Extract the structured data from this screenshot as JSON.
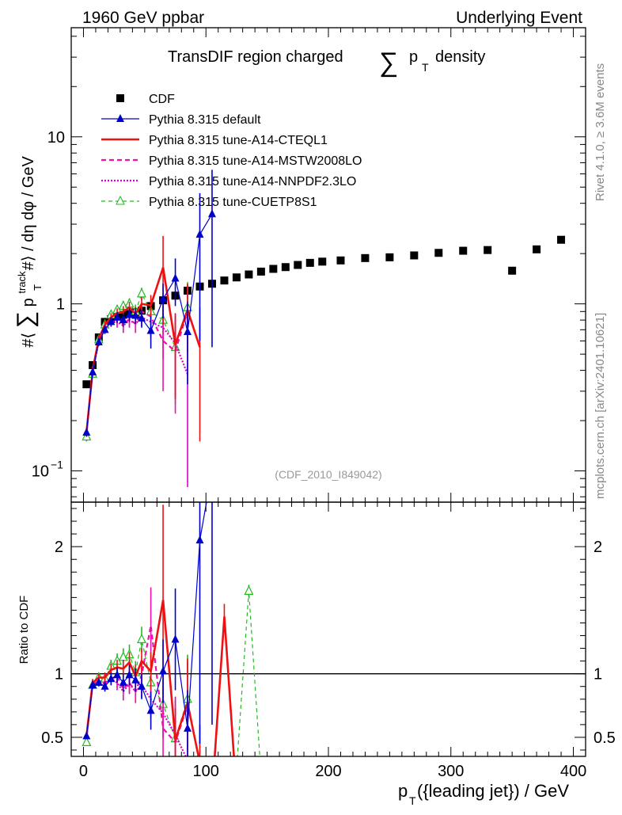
{
  "header": {
    "left": "1960 GeV ppbar",
    "right": "Underlying Event"
  },
  "side": {
    "rivet": "Rivet 4.1.0, ≥ 3.6M events",
    "mcplots": "mcplots.cern.ch [arXiv:2401.10621]"
  },
  "chart_data": {
    "type": "scatter",
    "title_prefix": "TransDIF region charged",
    "title_sum": "∑",
    "title_p": "p",
    "title_sub": "T",
    "title_suffix": "density",
    "watermark": "(CDF_2010_I849042)",
    "ylabel_main": "#⟨ ∑ pᵀ track #⟩ / dη dφ / GeV",
    "ylabel_main_parts": {
      "a": "#⟨",
      "sum": "∑",
      "p": "p",
      "sup": "track",
      "sub": "T",
      "b": "#⟩ / dη dφ / GeV"
    },
    "ylabel_ratio": "Ratio to CDF",
    "xlabel_main": "p",
    "xlabel_sub": "T",
    "xlabel_rest": "({leading jet}) / GeV",
    "xlim": [
      -10,
      410
    ],
    "ylim_main": [
      0.065,
      45
    ],
    "ylim_ratio": [
      0.35,
      2.35
    ],
    "main_yticks": [
      {
        "v": 0.1,
        "base": "10",
        "exp": "−1"
      },
      {
        "v": 1,
        "label": "1"
      },
      {
        "v": 10,
        "label": "10"
      }
    ],
    "xticks": [
      0,
      100,
      200,
      300,
      400
    ],
    "xtick_labels": [
      "0",
      "100",
      "200",
      "300",
      "400"
    ],
    "ratio_yticks": [
      0.5,
      1,
      2
    ],
    "ratio_ytick_labels": [
      "0.5",
      "1",
      "2"
    ],
    "legend": [
      "CDF",
      "Pythia 8.315 default",
      "Pythia 8.315 tune-A14-CTEQL1",
      "Pythia 8.315 tune-A14-MSTW2008LO",
      "Pythia 8.315 tune-A14-NNPDF2.3LO",
      "Pythia 8.315 tune-CUETP8S1"
    ],
    "data": {
      "name": "CDF",
      "x": [
        2.5,
        7.5,
        12.5,
        17.5,
        22.5,
        27.5,
        32.5,
        37.5,
        42.5,
        47.5,
        55,
        65,
        75,
        85,
        95,
        105,
        115,
        125,
        135,
        145,
        155,
        165,
        175,
        185,
        195,
        210,
        230,
        250,
        270,
        290,
        310,
        330,
        350,
        370,
        390
      ],
      "y": [
        0.33,
        0.43,
        0.63,
        0.78,
        0.81,
        0.84,
        0.86,
        0.87,
        0.89,
        0.91,
        0.97,
        1.05,
        1.12,
        1.2,
        1.27,
        1.32,
        1.38,
        1.44,
        1.5,
        1.56,
        1.62,
        1.66,
        1.71,
        1.76,
        1.79,
        1.82,
        1.88,
        1.9,
        1.95,
        2.02,
        2.08,
        2.1,
        1.58,
        2.12,
        2.42
      ]
    },
    "series": [
      {
        "name": "Pythia 8.315 default",
        "color": "#0000cc",
        "x": [
          2.5,
          7.5,
          12.5,
          17.5,
          22.5,
          27.5,
          32.5,
          37.5,
          42.5,
          47.5,
          55,
          65,
          75,
          85,
          95,
          105
        ],
        "y": [
          0.17,
          0.39,
          0.59,
          0.7,
          0.78,
          0.83,
          0.8,
          0.86,
          0.85,
          0.82,
          0.69,
          1.07,
          1.42,
          0.68,
          2.6,
          3.45
        ],
        "err": [
          0.01,
          0.02,
          0.03,
          0.04,
          0.05,
          0.06,
          0.07,
          0.08,
          0.09,
          0.1,
          0.15,
          0.25,
          0.45,
          0.35,
          2.0,
          2.9
        ],
        "ratio_x": [
          2.5,
          7.5,
          12.5,
          17.5,
          22.5,
          27.5,
          32.5,
          37.5,
          42.5,
          47.5,
          55,
          65,
          75,
          85,
          95,
          105
        ],
        "ratio_y": [
          0.51,
          0.91,
          0.93,
          0.9,
          0.96,
          0.99,
          0.93,
          0.99,
          0.95,
          0.9,
          0.71,
          1.02,
          1.27,
          0.57,
          2.05,
          2.6
        ],
        "ratio_err": [
          0.02,
          0.03,
          0.03,
          0.04,
          0.05,
          0.06,
          0.07,
          0.08,
          0.09,
          0.1,
          0.15,
          0.25,
          0.4,
          0.3,
          1.6,
          2.0
        ]
      },
      {
        "name": "Pythia 8.315 tune-A14-CTEQL1",
        "color": "#ee1111",
        "x": [
          2.5,
          7.5,
          12.5,
          17.5,
          22.5,
          27.5,
          32.5,
          37.5,
          42.5,
          47.5,
          55,
          65,
          75,
          85,
          95
        ],
        "y": [
          0.17,
          0.4,
          0.62,
          0.75,
          0.83,
          0.88,
          0.9,
          0.95,
          0.87,
          1.0,
          0.98,
          1.65,
          0.57,
          0.92,
          0.55
        ],
        "err": [
          0.01,
          0.02,
          0.03,
          0.04,
          0.05,
          0.06,
          0.07,
          0.08,
          0.09,
          0.1,
          0.15,
          0.9,
          0.3,
          0.4,
          0.4
        ],
        "ratio_x": [
          2.5,
          7.5,
          12.5,
          17.5,
          22.5,
          27.5,
          32.5,
          37.5,
          42.5,
          47.5,
          55,
          65,
          75,
          85,
          95,
          105,
          115,
          125
        ],
        "ratio_y": [
          0.51,
          0.93,
          0.97,
          0.97,
          1.03,
          1.05,
          1.04,
          1.09,
          0.98,
          1.1,
          1.02,
          1.58,
          0.48,
          0.77,
          0.3,
          0.05,
          1.45,
          0.05
        ],
        "ratio_err": [
          0.02,
          0.03,
          0.03,
          0.04,
          0.05,
          0.06,
          0.07,
          0.08,
          0.09,
          0.1,
          0.15,
          0.75,
          0.25,
          0.35,
          0.3,
          0,
          0.1,
          0
        ]
      },
      {
        "name": "Pythia 8.315 tune-A14-MSTW2008LO",
        "color": "#ee11aa",
        "x": [
          2.5,
          7.5,
          12.5,
          17.5,
          22.5,
          27.5,
          32.5,
          37.5,
          42.5,
          47.5,
          55,
          65,
          75,
          85
        ],
        "y": [
          0.17,
          0.4,
          0.6,
          0.73,
          0.78,
          0.82,
          0.76,
          0.81,
          0.76,
          0.9,
          0.84,
          0.6,
          0.52,
          0.9
        ],
        "err": [
          0.01,
          0.02,
          0.03,
          0.04,
          0.05,
          0.06,
          0.07,
          0.08,
          0.09,
          0.1,
          0.15,
          0.3,
          0.3,
          0.4
        ],
        "ratio_x": [
          2.5,
          7.5,
          12.5,
          17.5,
          22.5,
          27.5,
          32.5,
          37.5,
          42.5,
          47.5,
          55,
          65,
          75,
          85
        ],
        "ratio_y": [
          0.51,
          0.92,
          0.94,
          0.93,
          0.96,
          0.98,
          0.88,
          0.93,
          0.86,
          0.99,
          1.38,
          0.57,
          0.46,
          0.75
        ],
        "ratio_err": [
          0.02,
          0.03,
          0.03,
          0.04,
          0.05,
          0.06,
          0.07,
          0.08,
          0.09,
          0.1,
          0.3,
          0.25,
          0.3,
          0.35
        ]
      },
      {
        "name": "Pythia 8.315 tune-A14-NNPDF2.3LO",
        "color": "#dd00cc",
        "x": [
          2.5,
          7.5,
          12.5,
          17.5,
          22.5,
          27.5,
          32.5,
          37.5,
          42.5,
          47.5,
          55,
          65,
          75,
          85
        ],
        "y": [
          0.17,
          0.4,
          0.59,
          0.72,
          0.78,
          0.78,
          0.74,
          0.8,
          0.76,
          0.83,
          0.78,
          0.72,
          0.58,
          0.38
        ],
        "err": [
          0.01,
          0.02,
          0.03,
          0.04,
          0.05,
          0.06,
          0.07,
          0.08,
          0.09,
          0.1,
          0.15,
          0.25,
          0.3,
          0.3
        ],
        "ratio_x": [
          2.5,
          7.5,
          12.5,
          17.5,
          22.5,
          27.5,
          32.5,
          37.5,
          42.5,
          47.5,
          55,
          65,
          75,
          85,
          95
        ],
        "ratio_y": [
          0.51,
          0.92,
          0.94,
          0.92,
          0.96,
          0.93,
          0.86,
          0.92,
          0.86,
          0.91,
          0.8,
          0.69,
          0.52,
          0.32,
          0.3
        ],
        "ratio_err": [
          0.02,
          0.03,
          0.03,
          0.04,
          0.05,
          0.06,
          0.07,
          0.08,
          0.09,
          0.1,
          0.15,
          0.2,
          0.3,
          0.3,
          0.3
        ]
      },
      {
        "name": "Pythia 8.315 tune-CUETP8S1",
        "color": "#22bb22",
        "x": [
          2.5,
          7.5,
          12.5,
          17.5,
          22.5,
          27.5,
          32.5,
          37.5,
          42.5,
          47.5,
          55,
          65,
          75,
          85
        ],
        "y": [
          0.16,
          0.38,
          0.61,
          0.75,
          0.86,
          0.92,
          0.97,
          1.0,
          0.9,
          1.15,
          0.9,
          0.8,
          0.55,
          0.95
        ],
        "err": [
          0.01,
          0.02,
          0.03,
          0.04,
          0.05,
          0.06,
          0.07,
          0.08,
          0.09,
          0.1,
          0.15,
          0.25,
          0.3,
          0.4
        ],
        "ratio_x": [
          2.5,
          7.5,
          12.5,
          17.5,
          22.5,
          27.5,
          32.5,
          37.5,
          42.5,
          47.5,
          55,
          65,
          75,
          85,
          95,
          105,
          115,
          125,
          135,
          145
        ],
        "ratio_y": [
          0.46,
          0.91,
          0.97,
          0.96,
          1.06,
          1.1,
          1.13,
          1.15,
          1.01,
          1.27,
          0.93,
          0.76,
          0.49,
          0.8,
          0.3,
          0.2,
          0.2,
          0.25,
          1.65,
          0.2
        ],
        "ratio_err": [
          0.02,
          0.03,
          0.03,
          0.04,
          0.05,
          0.06,
          0.07,
          0.08,
          0.09,
          0.1,
          0.15,
          0.25,
          0.3,
          0.35,
          0,
          0,
          0,
          0,
          0.05,
          0
        ]
      }
    ]
  }
}
